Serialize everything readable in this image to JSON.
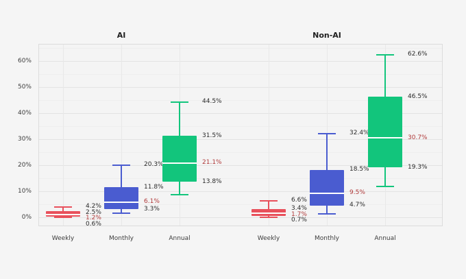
{
  "page": {
    "background": "#f5f5f5"
  },
  "chart_data": {
    "type": "boxplot",
    "title": "",
    "ylabel": "",
    "xlabel": "",
    "ylim": [
      -3.2,
      66.8
    ],
    "grid": true,
    "yticks": [
      0,
      10,
      20,
      30,
      40,
      50,
      60
    ],
    "ytick_labels": [
      "0%",
      "10%",
      "20%",
      "30%",
      "40%",
      "50%",
      "60%"
    ],
    "minor_yticks": [
      5,
      15,
      25,
      35,
      45,
      55,
      65
    ],
    "label_color": "#2a2a2a",
    "median_label_color": "#b03a3a",
    "median_line_color": "#ffffff",
    "panels": [
      {
        "title": "AI",
        "categories": [
          "Weekly",
          "Monthly",
          "Annual"
        ],
        "boxes": [
          {
            "category": "Weekly",
            "color": "#e8505b",
            "whisker_high": 4.2,
            "q3": 2.5,
            "median": 1.2,
            "q1": 0.6,
            "whisker_low": 0.1,
            "labels": {
              "whisker_high": "4.2%",
              "q3": "2.5%",
              "median": "1.2%",
              "q1": "0.6%"
            }
          },
          {
            "category": "Monthly",
            "color": "#4a5cd0",
            "whisker_high": 20.3,
            "q3": 11.8,
            "median": 6.1,
            "q1": 3.3,
            "whisker_low": 1.7,
            "labels": {
              "whisker_high": "20.3%",
              "q3": "11.8%",
              "median": "6.1%",
              "q1": "3.3%"
            }
          },
          {
            "category": "Annual",
            "color": "#12c57c",
            "whisker_high": 44.5,
            "q3": 31.5,
            "median": 21.1,
            "q1": 13.8,
            "whisker_low": 9.0,
            "labels": {
              "whisker_high": "44.5%",
              "q3": "31.5%",
              "median": "21.1%",
              "q1": "13.8%"
            }
          }
        ]
      },
      {
        "title": "Non-AI",
        "categories": [
          "Weekly",
          "Monthly",
          "Annual"
        ],
        "boxes": [
          {
            "category": "Weekly",
            "color": "#e8505b",
            "whisker_high": 6.6,
            "q3": 3.4,
            "median": 1.7,
            "q1": 0.7,
            "whisker_low": 0.2,
            "labels": {
              "whisker_high": "6.6%",
              "q3": "3.4%",
              "median": "1.7%",
              "q1": "0.7%"
            }
          },
          {
            "category": "Monthly",
            "color": "#4a5cd0",
            "whisker_high": 32.4,
            "q3": 18.5,
            "median": 9.5,
            "q1": 4.7,
            "whisker_low": 1.5,
            "labels": {
              "whisker_high": "32.4%",
              "q3": "18.5%",
              "median": "9.5%",
              "q1": "4.7%"
            }
          },
          {
            "category": "Annual",
            "color": "#12c57c",
            "whisker_high": 62.6,
            "q3": 46.5,
            "median": 30.7,
            "q1": 19.3,
            "whisker_low": 12.0,
            "labels": {
              "whisker_high": "62.6%",
              "q3": "46.5%",
              "median": "30.7%",
              "q1": "19.3%"
            }
          }
        ]
      }
    ]
  }
}
